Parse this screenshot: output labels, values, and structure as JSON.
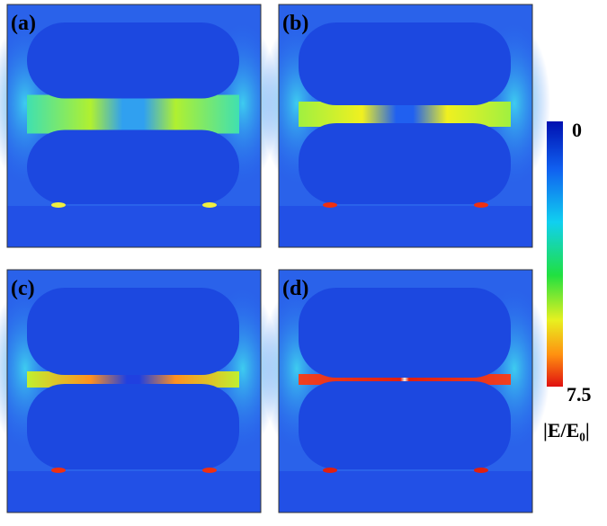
{
  "panels": [
    {
      "label": "(a)"
    },
    {
      "label": "(b)"
    },
    {
      "label": "(c)"
    },
    {
      "label": "(d)"
    }
  ],
  "colorbar": {
    "min": "0",
    "max": "7.5",
    "label": "|E/E₀|"
  }
}
